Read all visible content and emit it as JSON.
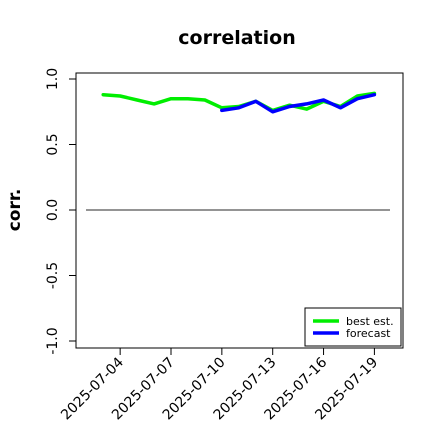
{
  "chart_data": {
    "type": "line",
    "title": "correlation",
    "xlabel": "",
    "ylabel": "corr.",
    "ylim": [
      -1.0,
      1.0
    ],
    "y_ticks": [
      "-1.0",
      "-0.5",
      "0.0",
      "0.5",
      "1.0"
    ],
    "x_tick_labels": [
      {
        "date": "2025-07-04",
        "label": "2025-07-04",
        "color": "#000000"
      },
      {
        "date": "2025-07-07",
        "label": "2025-07-07",
        "color": "#000000"
      },
      {
        "date": "2025-07-10",
        "label": "2025-07-10",
        "color": "#228B22"
      },
      {
        "date": "2025-07-13",
        "label": "2025-07-13",
        "color": "#000000"
      },
      {
        "date": "2025-07-16",
        "label": "2025-07-16",
        "color": "#000000"
      },
      {
        "date": "2025-07-19",
        "label": "2025-07-19",
        "color": "#000000"
      }
    ],
    "xlim": [
      "2025-07-02",
      "2025-07-20"
    ],
    "reference_line_y": 0.0,
    "grid": false,
    "legend_position": "bottom-right",
    "series": [
      {
        "name": "best est.",
        "color": "#00ee00",
        "x": [
          "2025-07-03",
          "2025-07-04",
          "2025-07-05",
          "2025-07-06",
          "2025-07-07",
          "2025-07-08",
          "2025-07-09",
          "2025-07-10",
          "2025-07-11",
          "2025-07-12",
          "2025-07-13",
          "2025-07-14",
          "2025-07-15",
          "2025-07-16",
          "2025-07-17",
          "2025-07-18",
          "2025-07-19"
        ],
        "y": [
          0.88,
          0.87,
          0.84,
          0.81,
          0.85,
          0.85,
          0.84,
          0.78,
          0.79,
          0.83,
          0.76,
          0.8,
          0.77,
          0.83,
          0.79,
          0.87,
          0.89
        ]
      },
      {
        "name": "forecast",
        "color": "#0000ff",
        "x": [
          "2025-07-10",
          "2025-07-11",
          "2025-07-12",
          "2025-07-13",
          "2025-07-14",
          "2025-07-15",
          "2025-07-16",
          "2025-07-17",
          "2025-07-18",
          "2025-07-19"
        ],
        "y": [
          0.76,
          0.78,
          0.83,
          0.75,
          0.79,
          0.81,
          0.84,
          0.78,
          0.85,
          0.88
        ]
      }
    ]
  }
}
